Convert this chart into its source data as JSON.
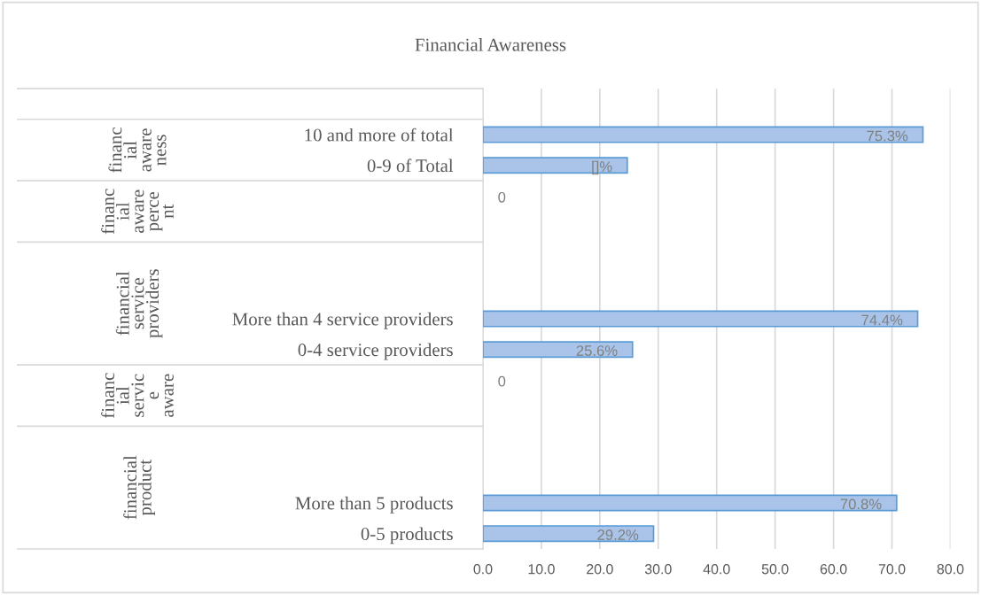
{
  "chart_data": {
    "type": "bar",
    "orientation": "horizontal",
    "title": "Financial Awareness",
    "categories": [
      null,
      "10 and more of total",
      "0-9 of Total",
      null,
      null,
      null,
      null,
      "More than 4 service providers",
      "0-4 service providers",
      null,
      null,
      null,
      null,
      "More than 5 products",
      "0-5 products"
    ],
    "values": [
      null,
      75.3,
      24.7,
      0,
      null,
      null,
      null,
      74.4,
      25.6,
      0,
      null,
      null,
      null,
      70.8,
      29.2
    ],
    "value_labels": [
      null,
      "75.3%",
      "[]%",
      "0",
      null,
      null,
      null,
      "74.4%",
      "25.6%",
      "0",
      null,
      null,
      null,
      "70.8%",
      "29.2%"
    ],
    "color": "#a9c4e8",
    "xlim": [
      0,
      80
    ],
    "xticks": [
      {
        "value": 0,
        "label": "0.0"
      },
      {
        "value": 10,
        "label": "10.0"
      },
      {
        "value": 20,
        "label": "20.0"
      },
      {
        "value": 30,
        "label": "30.0"
      },
      {
        "value": 40,
        "label": "40.0"
      },
      {
        "value": 50,
        "label": "50.0"
      },
      {
        "value": 60,
        "label": "60.0"
      },
      {
        "value": 70,
        "label": "70.0"
      },
      {
        "value": 80,
        "label": "80.0"
      }
    ],
    "annotations": [
      "financ\nial\naware\nness",
      "financ\nial\naware\nperce\nnt",
      "financial\nservice\nproviders",
      "financ\nial\nservic\ne\naware",
      "financial\nproduct"
    ],
    "grid": "x"
  }
}
